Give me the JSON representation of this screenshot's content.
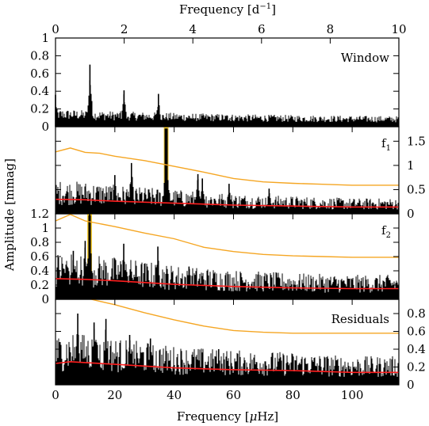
{
  "chart_data": [
    {
      "type": "line",
      "panel": "Window",
      "label": "Window",
      "x_axis_top": {
        "label_prefix": "Frequency [d",
        "label_exp": "−1",
        "label_suffix": "]",
        "range": [
          0,
          10
        ],
        "ticks": [
          "0",
          "2",
          "4",
          "6",
          "8",
          "10"
        ]
      },
      "y_axis_left": {
        "range": [
          0,
          1.0
        ],
        "ticks": [
          "0",
          "0.2",
          "0.4",
          "0.6",
          "0.8",
          "1"
        ]
      },
      "xlim_uHz": [
        0,
        115.74
      ],
      "peaks": [
        {
          "x": 0.0,
          "y": 0.36
        },
        {
          "x": 11.6,
          "y": 0.7
        },
        {
          "x": 23.1,
          "y": 0.41
        },
        {
          "x": 34.7,
          "y": 0.37
        },
        {
          "x": 46.3,
          "y": 0.09
        },
        {
          "x": 57.9,
          "y": 0.06
        }
      ]
    },
    {
      "type": "line",
      "panel": "f1",
      "label_main": "f",
      "label_sub": "1",
      "y_axis_right": {
        "range": [
          0,
          1.8
        ],
        "ticks": [
          "0",
          "0.5",
          "1",
          "1.5"
        ]
      },
      "highlight_frequency": 37.3,
      "threshold_orange": [
        [
          0,
          1.28
        ],
        [
          5,
          1.36
        ],
        [
          10,
          1.27
        ],
        [
          15,
          1.25
        ],
        [
          20,
          1.19
        ],
        [
          30,
          1.1
        ],
        [
          40,
          0.98
        ],
        [
          50,
          0.86
        ],
        [
          60,
          0.73
        ],
        [
          70,
          0.66
        ],
        [
          80,
          0.63
        ],
        [
          90,
          0.61
        ],
        [
          100,
          0.59
        ],
        [
          115.74,
          0.59
        ]
      ],
      "noise_red": [
        [
          0,
          0.3
        ],
        [
          10,
          0.29
        ],
        [
          20,
          0.26
        ],
        [
          40,
          0.22
        ],
        [
          60,
          0.18
        ],
        [
          80,
          0.16
        ],
        [
          100,
          0.14
        ],
        [
          115.74,
          0.14
        ]
      ],
      "peaks": [
        {
          "x": 37.3,
          "y": 1.72
        },
        {
          "x": 25.6,
          "y": 1.05
        },
        {
          "x": 20.0,
          "y": 0.8
        },
        {
          "x": 48.0,
          "y": 0.82
        },
        {
          "x": 49.5,
          "y": 0.73
        },
        {
          "x": 58.5,
          "y": 0.62
        },
        {
          "x": 72.0,
          "y": 0.52
        }
      ]
    },
    {
      "type": "line",
      "panel": "f2",
      "label_main": "f",
      "label_sub": "2",
      "y_axis_left": {
        "range": [
          0,
          1.2
        ],
        "ticks": [
          "0",
          "0.2",
          "0.4",
          "0.6",
          "0.8",
          "1",
          "1.2"
        ]
      },
      "highlight_frequency": 11.5,
      "threshold_orange": [
        [
          0,
          1.1
        ],
        [
          5,
          1.19
        ],
        [
          10,
          1.1
        ],
        [
          20,
          1.02
        ],
        [
          30,
          0.93
        ],
        [
          40,
          0.85
        ],
        [
          50,
          0.73
        ],
        [
          60,
          0.67
        ],
        [
          70,
          0.63
        ],
        [
          80,
          0.61
        ],
        [
          90,
          0.6
        ],
        [
          100,
          0.59
        ],
        [
          115.74,
          0.59
        ]
      ],
      "noise_red": [
        [
          0,
          0.29
        ],
        [
          10,
          0.28
        ],
        [
          20,
          0.26
        ],
        [
          40,
          0.21
        ],
        [
          60,
          0.18
        ],
        [
          80,
          0.16
        ],
        [
          100,
          0.15
        ],
        [
          115.74,
          0.15
        ]
      ],
      "peaks": [
        {
          "x": 11.5,
          "y": 1.2
        },
        {
          "x": 10.0,
          "y": 0.82
        },
        {
          "x": 23.0,
          "y": 0.78
        },
        {
          "x": 34.5,
          "y": 0.74
        },
        {
          "x": 6.0,
          "y": 0.68
        },
        {
          "x": 45.0,
          "y": 0.46
        }
      ]
    },
    {
      "type": "line",
      "panel": "Residuals",
      "label": "Residuals",
      "x_axis_bottom": {
        "label_prefix": "Frequency [",
        "label_mu": "μ",
        "label_suffix": "Hz]",
        "range": [
          0,
          115.74
        ],
        "ticks": [
          "0",
          "20",
          "40",
          "60",
          "80",
          "100"
        ]
      },
      "y_axis_right": {
        "range": [
          0,
          0.96
        ],
        "ticks": [
          "0",
          "0.2",
          "0.4",
          "0.6",
          "0.8"
        ]
      },
      "threshold_orange": [
        [
          12,
          0.98
        ],
        [
          20,
          0.9
        ],
        [
          30,
          0.81
        ],
        [
          40,
          0.73
        ],
        [
          50,
          0.66
        ],
        [
          60,
          0.61
        ],
        [
          70,
          0.59
        ],
        [
          80,
          0.58
        ],
        [
          90,
          0.58
        ],
        [
          100,
          0.58
        ],
        [
          115.74,
          0.58
        ]
      ],
      "noise_red": [
        [
          0,
          0.24
        ],
        [
          5,
          0.26
        ],
        [
          10,
          0.25
        ],
        [
          20,
          0.23
        ],
        [
          40,
          0.19
        ],
        [
          60,
          0.17
        ],
        [
          80,
          0.16
        ],
        [
          100,
          0.14
        ],
        [
          115.74,
          0.14
        ]
      ],
      "peaks": [
        {
          "x": 7.5,
          "y": 0.8
        },
        {
          "x": 17.0,
          "y": 0.74
        },
        {
          "x": 13.0,
          "y": 0.7
        },
        {
          "x": 25.0,
          "y": 0.56
        },
        {
          "x": 32.0,
          "y": 0.52
        },
        {
          "x": 55.0,
          "y": 0.4
        }
      ]
    }
  ],
  "y_axis_title": "Amplitude [mmag]",
  "colors": {
    "spectrum": "#000000",
    "threshold": "#f5a623",
    "noise": "#ff1e1e",
    "highlight": "#f5c518"
  }
}
